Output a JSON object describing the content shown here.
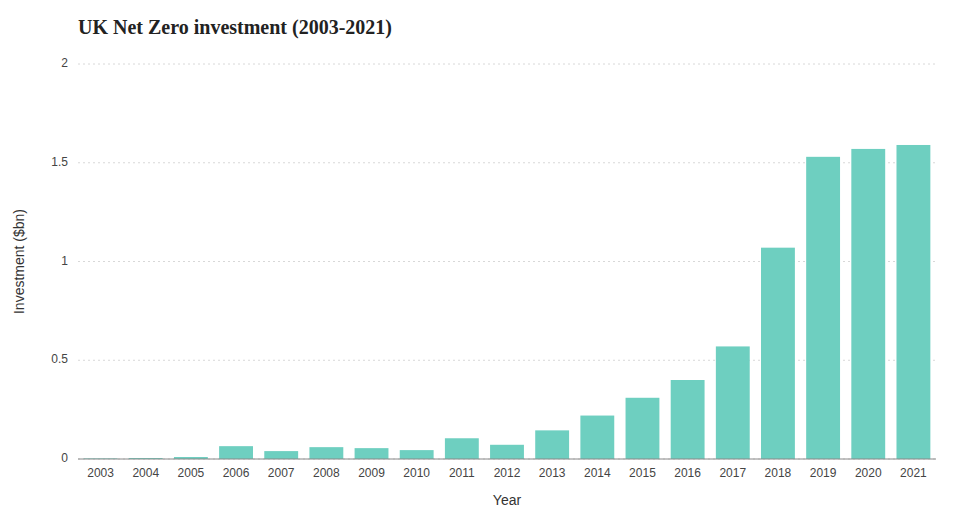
{
  "chart_data": {
    "type": "bar",
    "title": "UK Net Zero investment (2003-2021)",
    "xlabel": "Year",
    "ylabel": "Investment ($bn)",
    "categories": [
      "2003",
      "2004",
      "2005",
      "2006",
      "2007",
      "2008",
      "2009",
      "2010",
      "2011",
      "2012",
      "2013",
      "2014",
      "2015",
      "2016",
      "2017",
      "2018",
      "2019",
      "2020",
      "2021"
    ],
    "values": [
      0.003,
      0.005,
      0.01,
      0.065,
      0.04,
      0.06,
      0.055,
      0.045,
      0.105,
      0.072,
      0.145,
      0.22,
      0.31,
      0.4,
      0.57,
      1.07,
      1.53,
      1.57,
      1.59
    ],
    "color": "#6ecfc0",
    "ylim": [
      0,
      2.0
    ],
    "yticks": [
      0,
      0.5,
      1,
      1.5,
      2
    ],
    "grid": true
  }
}
